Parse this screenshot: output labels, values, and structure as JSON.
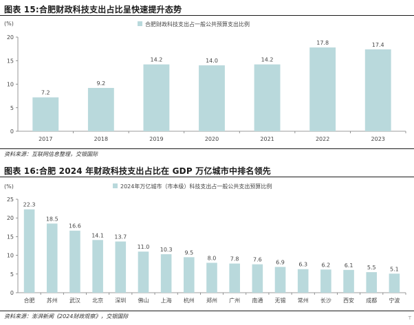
{
  "figure1": {
    "title": "图表 15:合肥财政科技支出占比呈快速提升态势",
    "source": "资料来源：互联网信息整理，交银国际"
  },
  "figure2": {
    "title": "图表 16:合肥 2024 年财政科技支出占比在 GDP 万亿城市中排名领先",
    "source": "资料来源：澎湃新闻《2024财政观察》，交银国际"
  },
  "page_mark": "T",
  "colors": {
    "bar": "#b9d9dc",
    "axis": "#7a7a7a",
    "text": "#444444"
  },
  "chart_data": [
    {
      "type": "bar",
      "title": "",
      "unit_label": "(%)",
      "legend": "合肥财政科技支出占一般公共预算支出比例",
      "legend_position": "top-center",
      "grid": false,
      "ylim": [
        0,
        20
      ],
      "yticks": [
        0,
        5,
        10,
        15,
        20
      ],
      "categories": [
        "2017",
        "2018",
        "2019",
        "2020",
        "2021",
        "2022",
        "2023"
      ],
      "values": [
        7.2,
        9.2,
        14.2,
        14.0,
        14.2,
        17.8,
        17.4
      ],
      "value_labels": [
        "7.2",
        "9.2",
        "14.2",
        "14.0",
        "14.2",
        "17.8",
        "17.4"
      ]
    },
    {
      "type": "bar",
      "title": "",
      "unit_label": "(%)",
      "legend": "2024年万亿城市（市本级）科技支出占一般公共支出预算比例",
      "legend_position": "top-center",
      "grid": false,
      "ylim": [
        0,
        25
      ],
      "yticks": [
        0,
        5,
        10,
        15,
        20,
        25
      ],
      "categories": [
        "合肥",
        "苏州",
        "武汉",
        "北京",
        "深圳",
        "佛山",
        "上海",
        "杭州",
        "郑州",
        "广州",
        "南通",
        "无锡",
        "常州",
        "长沙",
        "西安",
        "成都",
        "宁波"
      ],
      "values": [
        22.3,
        18.5,
        16.6,
        14.1,
        13.7,
        11.0,
        10.3,
        9.5,
        8.0,
        7.8,
        7.6,
        6.9,
        6.3,
        6.2,
        6.1,
        5.5,
        5.1
      ],
      "value_labels": [
        "22.3",
        "18.5",
        "16.6",
        "14.1",
        "13.7",
        "11.0",
        "10.3",
        "9.5",
        "8.0",
        "7.8",
        "7.6",
        "6.9",
        "6.3",
        "6.2",
        "6.1",
        "5.5",
        "5.1"
      ]
    }
  ]
}
